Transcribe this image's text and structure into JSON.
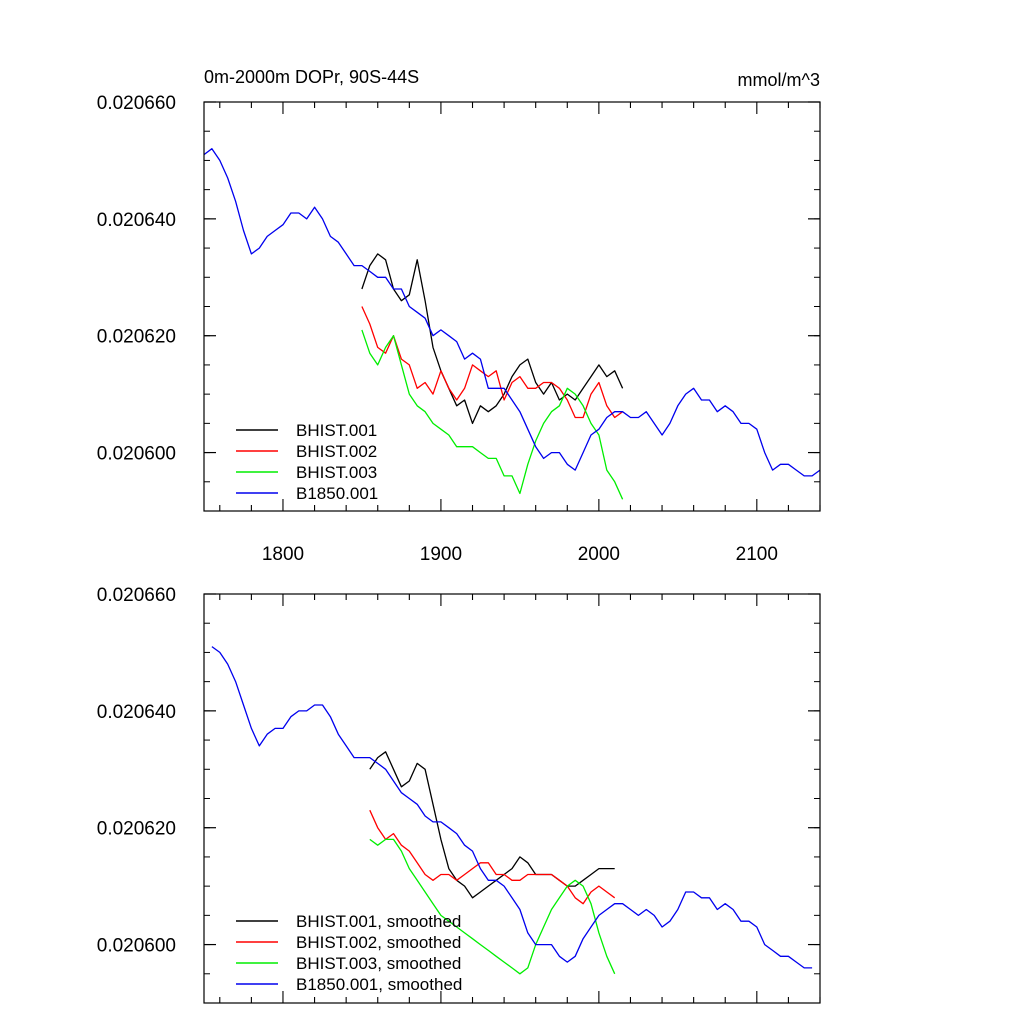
{
  "chart_data": [
    {
      "type": "line",
      "title": "0m-2000m DOPr, 90S-44S",
      "units": "mmol/m^3",
      "xlim": [
        1750,
        2140
      ],
      "ylim": [
        0.02059,
        0.02066
      ],
      "x_ticks": [
        1800,
        1900,
        2000,
        2100
      ],
      "x_tick_labels": [
        "1800",
        "1900",
        "2000",
        "2100"
      ],
      "y_ticks": [
        0.0206,
        0.02062,
        0.02064,
        0.02066
      ],
      "y_tick_labels": [
        "0.020600",
        "0.020620",
        "0.020640",
        "0.020660"
      ],
      "legend_position": "bottom-left",
      "series": [
        {
          "name": "BHIST.001",
          "color": "#000000",
          "x": [
            1850,
            1855,
            1860,
            1865,
            1870,
            1875,
            1880,
            1885,
            1890,
            1895,
            1900,
            1905,
            1910,
            1915,
            1920,
            1925,
            1930,
            1935,
            1940,
            1945,
            1950,
            1955,
            1960,
            1965,
            1970,
            1975,
            1980,
            1985,
            1990,
            1995,
            2000,
            2005,
            2010,
            2015
          ],
          "y": [
            0.020628,
            0.020632,
            0.020634,
            0.020633,
            0.020628,
            0.020626,
            0.020627,
            0.020633,
            0.020626,
            0.020618,
            0.020614,
            0.020611,
            0.020608,
            0.020609,
            0.020605,
            0.020608,
            0.020607,
            0.020608,
            0.02061,
            0.020613,
            0.020615,
            0.020616,
            0.020612,
            0.02061,
            0.020612,
            0.020609,
            0.02061,
            0.020609,
            0.020611,
            0.020613,
            0.020615,
            0.020613,
            0.020614,
            0.020611
          ]
        },
        {
          "name": "BHIST.002",
          "color": "#ff0000",
          "x": [
            1850,
            1855,
            1860,
            1865,
            1870,
            1875,
            1880,
            1885,
            1890,
            1895,
            1900,
            1905,
            1910,
            1915,
            1920,
            1925,
            1930,
            1935,
            1940,
            1945,
            1950,
            1955,
            1960,
            1965,
            1970,
            1975,
            1980,
            1985,
            1990,
            1995,
            2000,
            2005,
            2010,
            2015
          ],
          "y": [
            0.020625,
            0.020622,
            0.020618,
            0.020617,
            0.02062,
            0.020616,
            0.020615,
            0.020611,
            0.020612,
            0.02061,
            0.020614,
            0.020611,
            0.020609,
            0.020611,
            0.020615,
            0.020614,
            0.020613,
            0.020614,
            0.020609,
            0.020612,
            0.020613,
            0.020611,
            0.020611,
            0.020612,
            0.020612,
            0.020611,
            0.020609,
            0.020606,
            0.020606,
            0.02061,
            0.020612,
            0.020608,
            0.020606,
            0.020607
          ]
        },
        {
          "name": "BHIST.003",
          "color": "#00ee00",
          "x": [
            1850,
            1855,
            1860,
            1865,
            1870,
            1875,
            1880,
            1885,
            1890,
            1895,
            1900,
            1905,
            1910,
            1915,
            1920,
            1925,
            1930,
            1935,
            1940,
            1945,
            1950,
            1955,
            1960,
            1965,
            1970,
            1975,
            1980,
            1985,
            1990,
            1995,
            2000,
            2005,
            2010,
            2015
          ],
          "y": [
            0.020621,
            0.020617,
            0.020615,
            0.020618,
            0.02062,
            0.020615,
            0.02061,
            0.020608,
            0.020607,
            0.020605,
            0.020604,
            0.020603,
            0.020601,
            0.020601,
            0.020601,
            0.0206,
            0.020599,
            0.020599,
            0.020596,
            0.020596,
            0.020593,
            0.020598,
            0.020602,
            0.020605,
            0.020607,
            0.020608,
            0.020611,
            0.02061,
            0.020608,
            0.020605,
            0.020603,
            0.020597,
            0.020595,
            0.020592
          ]
        },
        {
          "name": "B1850.001",
          "color": "#0000ee",
          "x": [
            1750,
            1755,
            1760,
            1765,
            1770,
            1775,
            1780,
            1785,
            1790,
            1795,
            1800,
            1805,
            1810,
            1815,
            1820,
            1825,
            1830,
            1835,
            1840,
            1845,
            1850,
            1855,
            1860,
            1865,
            1870,
            1875,
            1880,
            1885,
            1890,
            1895,
            1900,
            1905,
            1910,
            1915,
            1920,
            1925,
            1930,
            1935,
            1940,
            1945,
            1950,
            1955,
            1960,
            1965,
            1970,
            1975,
            1980,
            1985,
            1990,
            1995,
            2000,
            2005,
            2010,
            2015,
            2020,
            2025,
            2030,
            2035,
            2040,
            2045,
            2050,
            2055,
            2060,
            2065,
            2070,
            2075,
            2080,
            2085,
            2090,
            2095,
            2100,
            2105,
            2110,
            2115,
            2120,
            2125,
            2130,
            2135,
            2140
          ],
          "y": [
            0.020651,
            0.020652,
            0.02065,
            0.020647,
            0.020643,
            0.020638,
            0.020634,
            0.020635,
            0.020637,
            0.020638,
            0.020639,
            0.020641,
            0.020641,
            0.02064,
            0.020642,
            0.02064,
            0.020637,
            0.020636,
            0.020634,
            0.020632,
            0.020632,
            0.020631,
            0.02063,
            0.02063,
            0.020628,
            0.020628,
            0.020625,
            0.020624,
            0.020623,
            0.02062,
            0.020621,
            0.02062,
            0.020619,
            0.020616,
            0.020617,
            0.020616,
            0.020611,
            0.020611,
            0.020611,
            0.020609,
            0.020607,
            0.020604,
            0.020601,
            0.020599,
            0.0206,
            0.0206,
            0.020598,
            0.020597,
            0.0206,
            0.020603,
            0.020604,
            0.020606,
            0.020607,
            0.020607,
            0.020606,
            0.020606,
            0.020607,
            0.020605,
            0.020603,
            0.020605,
            0.020608,
            0.02061,
            0.020611,
            0.020609,
            0.020609,
            0.020607,
            0.020608,
            0.020607,
            0.020605,
            0.020605,
            0.020604,
            0.0206,
            0.020597,
            0.020598,
            0.020598,
            0.020597,
            0.020596,
            0.020596,
            0.020597
          ]
        }
      ]
    },
    {
      "type": "line",
      "xlim": [
        1750,
        2140
      ],
      "ylim": [
        0.02059,
        0.02066
      ],
      "y_ticks": [
        0.0206,
        0.02062,
        0.02064,
        0.02066
      ],
      "y_tick_labels": [
        "0.020600",
        "0.020620",
        "0.020640",
        "0.020660"
      ],
      "legend_position": "bottom-left",
      "series": [
        {
          "name": "BHIST.001, smoothed",
          "color": "#000000",
          "x": [
            1855,
            1860,
            1865,
            1870,
            1875,
            1880,
            1885,
            1890,
            1895,
            1900,
            1905,
            1910,
            1915,
            1920,
            1925,
            1930,
            1935,
            1940,
            1945,
            1950,
            1955,
            1960,
            1965,
            1970,
            1975,
            1980,
            1985,
            1990,
            1995,
            2000,
            2005,
            2010
          ],
          "y": [
            0.02063,
            0.020632,
            0.020633,
            0.02063,
            0.020627,
            0.020628,
            0.020631,
            0.02063,
            0.020624,
            0.020618,
            0.020613,
            0.020611,
            0.02061,
            0.020608,
            0.020609,
            0.02061,
            0.020611,
            0.020612,
            0.020613,
            0.020615,
            0.020614,
            0.020612,
            0.020612,
            0.020612,
            0.020611,
            0.02061,
            0.02061,
            0.020611,
            0.020612,
            0.020613,
            0.020613,
            0.020613
          ]
        },
        {
          "name": "BHIST.002, smoothed",
          "color": "#ff0000",
          "x": [
            1855,
            1860,
            1865,
            1870,
            1875,
            1880,
            1885,
            1890,
            1895,
            1900,
            1905,
            1910,
            1915,
            1920,
            1925,
            1930,
            1935,
            1940,
            1945,
            1950,
            1955,
            1960,
            1965,
            1970,
            1975,
            1980,
            1985,
            1990,
            1995,
            2000,
            2005,
            2010
          ],
          "y": [
            0.020623,
            0.02062,
            0.020618,
            0.020619,
            0.020617,
            0.020616,
            0.020614,
            0.020612,
            0.020611,
            0.020612,
            0.020612,
            0.020611,
            0.020612,
            0.020613,
            0.020614,
            0.020614,
            0.020612,
            0.020612,
            0.020611,
            0.020611,
            0.020612,
            0.020612,
            0.020612,
            0.020612,
            0.020611,
            0.02061,
            0.020608,
            0.020607,
            0.020609,
            0.02061,
            0.020609,
            0.020608
          ]
        },
        {
          "name": "BHIST.003, smoothed",
          "color": "#00ee00",
          "x": [
            1855,
            1860,
            1865,
            1870,
            1875,
            1880,
            1885,
            1890,
            1895,
            1900,
            1905,
            1910,
            1915,
            1920,
            1925,
            1930,
            1935,
            1940,
            1945,
            1950,
            1955,
            1960,
            1965,
            1970,
            1975,
            1980,
            1985,
            1990,
            1995,
            2000,
            2005,
            2010
          ],
          "y": [
            0.020618,
            0.020617,
            0.020618,
            0.020618,
            0.020616,
            0.020613,
            0.020611,
            0.020609,
            0.020607,
            0.020605,
            0.020604,
            0.020603,
            0.020602,
            0.020601,
            0.0206,
            0.020599,
            0.020598,
            0.020597,
            0.020596,
            0.020595,
            0.020596,
            0.0206,
            0.020603,
            0.020606,
            0.020608,
            0.02061,
            0.020611,
            0.02061,
            0.020607,
            0.020602,
            0.020598,
            0.020595
          ]
        },
        {
          "name": "B1850.001, smoothed",
          "color": "#0000ee",
          "x": [
            1755,
            1760,
            1765,
            1770,
            1775,
            1780,
            1785,
            1790,
            1795,
            1800,
            1805,
            1810,
            1815,
            1820,
            1825,
            1830,
            1835,
            1840,
            1845,
            1850,
            1855,
            1860,
            1865,
            1870,
            1875,
            1880,
            1885,
            1890,
            1895,
            1900,
            1905,
            1910,
            1915,
            1920,
            1925,
            1930,
            1935,
            1940,
            1945,
            1950,
            1955,
            1960,
            1965,
            1970,
            1975,
            1980,
            1985,
            1990,
            1995,
            2000,
            2005,
            2010,
            2015,
            2020,
            2025,
            2030,
            2035,
            2040,
            2045,
            2050,
            2055,
            2060,
            2065,
            2070,
            2075,
            2080,
            2085,
            2090,
            2095,
            2100,
            2105,
            2110,
            2115,
            2120,
            2125,
            2130,
            2135
          ],
          "y": [
            0.020651,
            0.02065,
            0.020648,
            0.020645,
            0.020641,
            0.020637,
            0.020634,
            0.020636,
            0.020637,
            0.020637,
            0.020639,
            0.02064,
            0.02064,
            0.020641,
            0.020641,
            0.020639,
            0.020636,
            0.020634,
            0.020632,
            0.020632,
            0.020632,
            0.020631,
            0.02063,
            0.020628,
            0.020626,
            0.020625,
            0.020624,
            0.020622,
            0.020621,
            0.020621,
            0.02062,
            0.020619,
            0.020617,
            0.020616,
            0.020613,
            0.020611,
            0.020611,
            0.02061,
            0.020608,
            0.020606,
            0.020602,
            0.0206,
            0.0206,
            0.0206,
            0.020598,
            0.020597,
            0.020598,
            0.020601,
            0.020603,
            0.020605,
            0.020606,
            0.020607,
            0.020607,
            0.020606,
            0.020605,
            0.020606,
            0.020605,
            0.020603,
            0.020604,
            0.020606,
            0.020609,
            0.020609,
            0.020608,
            0.020608,
            0.020606,
            0.020607,
            0.020606,
            0.020604,
            0.020604,
            0.020603,
            0.0206,
            0.020599,
            0.020598,
            0.020598,
            0.020597,
            0.020596,
            0.020596
          ]
        }
      ]
    }
  ]
}
